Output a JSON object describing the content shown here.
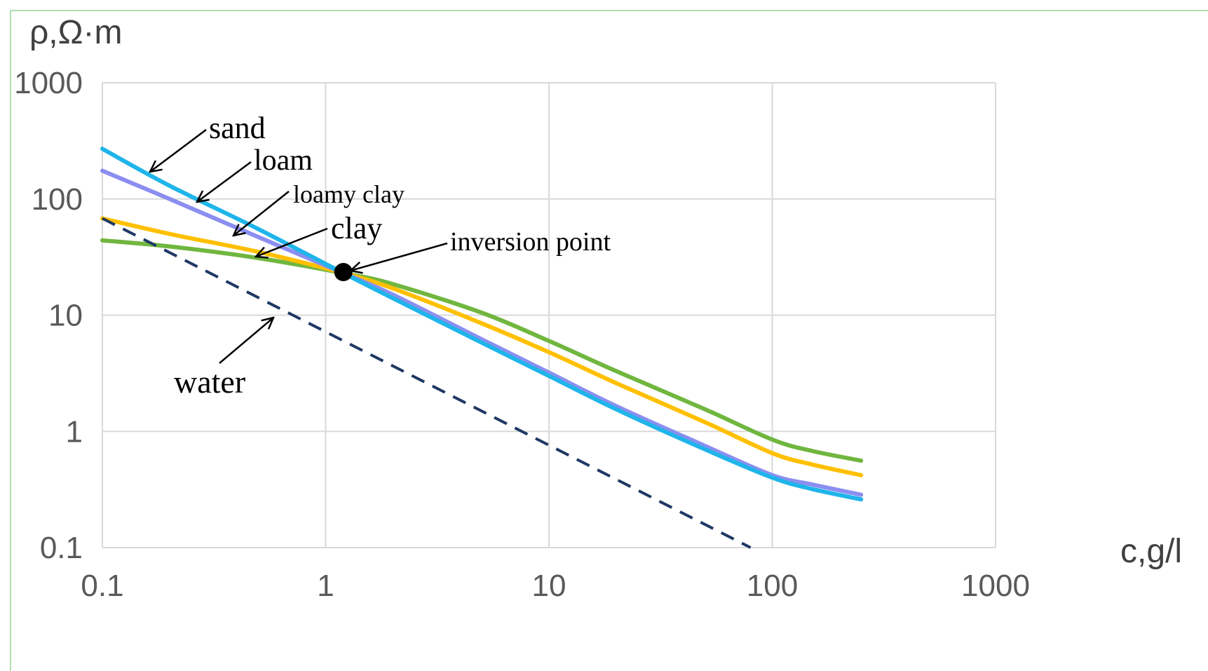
{
  "chart_data": {
    "type": "line",
    "title": "",
    "xlabel": "c,g/l",
    "ylabel": "ρ,Ω·m",
    "x_scale": "log",
    "y_scale": "log",
    "xlim": [
      0.1,
      1000
    ],
    "ylim": [
      0.1,
      1000
    ],
    "grid": true,
    "x_ticks": [
      "0.1",
      "1",
      "10",
      "100",
      "1000"
    ],
    "y_ticks": [
      "1000",
      "100",
      "10",
      "1",
      "0.1"
    ],
    "colors": {
      "sand": "#1fb5ea",
      "loam": "#8b8ef0",
      "loamy_clay": "#ffc000",
      "clay": "#70b63f",
      "water": "#1f3864",
      "grid": "#d9d9d9",
      "frame": "#b4dcb4"
    },
    "series": [
      {
        "name": "sand",
        "x": [
          0.1,
          0.2,
          0.5,
          1.2,
          2,
          5,
          10,
          20,
          50,
          100,
          150,
          250
        ],
        "y": [
          270,
          130,
          55,
          23,
          14,
          5.8,
          3.0,
          1.55,
          0.7,
          0.4,
          0.32,
          0.26
        ]
      },
      {
        "name": "loam",
        "x": [
          0.1,
          0.2,
          0.5,
          1.2,
          2,
          5,
          10,
          20,
          50,
          100,
          150,
          250
        ],
        "y": [
          175,
          100,
          47,
          23,
          15,
          6.2,
          3.2,
          1.65,
          0.75,
          0.42,
          0.35,
          0.285
        ]
      },
      {
        "name": "loamy clay",
        "x": [
          0.1,
          0.2,
          0.5,
          1.2,
          2,
          5,
          10,
          20,
          50,
          100,
          150,
          250
        ],
        "y": [
          68,
          50,
          35,
          23,
          17,
          8.5,
          4.8,
          2.6,
          1.2,
          0.65,
          0.52,
          0.42
        ]
      },
      {
        "name": "clay",
        "x": [
          0.1,
          0.2,
          0.5,
          1.2,
          2,
          5,
          10,
          20,
          50,
          100,
          150,
          250
        ],
        "y": [
          44,
          39,
          31,
          23,
          18.5,
          10.5,
          6.0,
          3.3,
          1.55,
          0.85,
          0.68,
          0.56
        ]
      },
      {
        "name": "water",
        "dashed": true,
        "x": [
          0.1,
          80
        ],
        "y": [
          68,
          0.1
        ]
      }
    ],
    "annotations": {
      "sand": "sand",
      "loam": "loam",
      "loamy_clay": "loamy clay",
      "clay": "clay",
      "inversion_point": "inversion point",
      "water": "water"
    },
    "inversion_point": {
      "x": 1.2,
      "y": 23.5
    }
  }
}
